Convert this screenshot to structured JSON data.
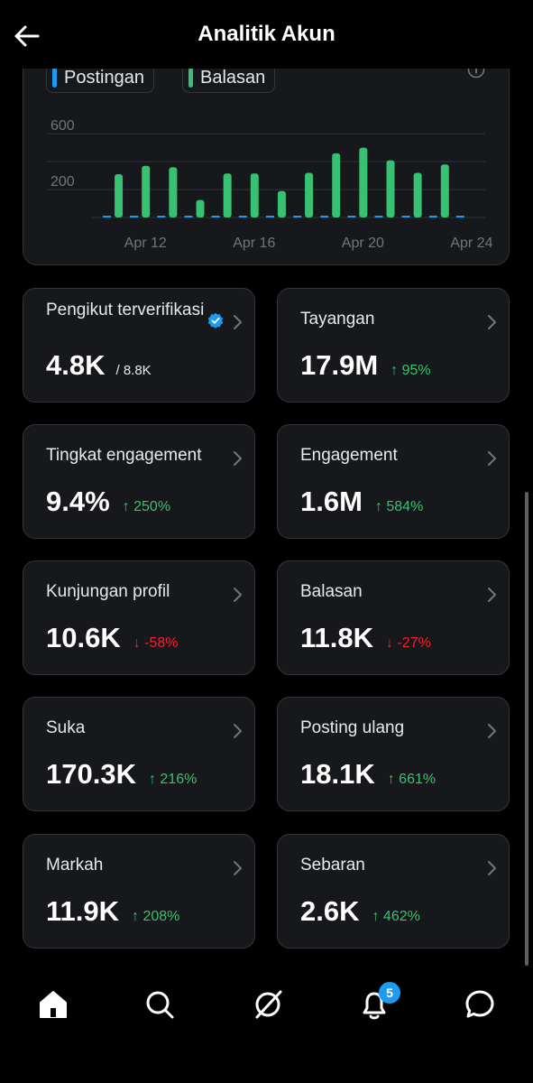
{
  "header": {
    "title": "Analitik Akun",
    "back_icon": "arrow-left-icon"
  },
  "chart": {
    "legend": [
      {
        "label": "Postingan",
        "color": "#1d9bf0"
      },
      {
        "label": "Balasan",
        "color": "#38c172"
      }
    ],
    "info_icon": "info-icon"
  },
  "chart_data": {
    "type": "bar",
    "x": [
      "Apr 11",
      "Apr 12",
      "Apr 13",
      "Apr 14",
      "Apr 15",
      "Apr 16",
      "Apr 17",
      "Apr 18",
      "Apr 19",
      "Apr 20",
      "Apr 21",
      "Apr 22",
      "Apr 23",
      "Apr 24"
    ],
    "x_tick_labels": [
      "Apr 12",
      "Apr 16",
      "Apr 20",
      "Apr 24"
    ],
    "y_tick_labels": [
      "200",
      "600"
    ],
    "ylim": [
      0,
      750
    ],
    "grid": true,
    "series": [
      {
        "name": "Postingan",
        "color": "#1d9bf0",
        "values": [
          10,
          10,
          10,
          10,
          10,
          10,
          10,
          10,
          10,
          10,
          10,
          10,
          10,
          10
        ]
      },
      {
        "name": "Balasan",
        "color": "#38c172",
        "values": [
          310,
          370,
          360,
          125,
          315,
          315,
          190,
          320,
          460,
          500,
          410,
          320,
          380,
          0
        ]
      }
    ]
  },
  "cards": [
    {
      "label": "Pengikut terverifikasi",
      "value": "4.8K",
      "sub": "/ 8.8K",
      "change": "",
      "direction": "none",
      "verified": true
    },
    {
      "label": "Tayangan",
      "value": "17.9M",
      "sub": "",
      "change": "↑ 95%",
      "direction": "up"
    },
    {
      "label": "Tingkat engagement",
      "value": "9.4%",
      "sub": "",
      "change": "↑ 250%",
      "direction": "up"
    },
    {
      "label": "Engagement",
      "value": "1.6M",
      "sub": "",
      "change": "↑ 584%",
      "direction": "up"
    },
    {
      "label": "Kunjungan profil",
      "value": "10.6K",
      "sub": "",
      "change": "↓ -58%",
      "direction": "down"
    },
    {
      "label": "Balasan",
      "value": "11.8K",
      "sub": "",
      "change": "↓ -27%",
      "direction": "down"
    },
    {
      "label": "Suka",
      "value": "170.3K",
      "sub": "",
      "change": "↑ 216%",
      "direction": "up"
    },
    {
      "label": "Posting ulang",
      "value": "18.1K",
      "sub": "",
      "change": "↑ 661%",
      "direction": "up"
    },
    {
      "label": "Markah",
      "value": "11.9K",
      "sub": "",
      "change": "↑ 208%",
      "direction": "up"
    },
    {
      "label": "Sebaran",
      "value": "2.6K",
      "sub": "",
      "change": "↑ 462%",
      "direction": "up"
    }
  ],
  "nav": {
    "items": [
      "home-icon",
      "search-icon",
      "grok-icon",
      "notifications-icon",
      "messages-icon"
    ],
    "notification_count": "5"
  }
}
